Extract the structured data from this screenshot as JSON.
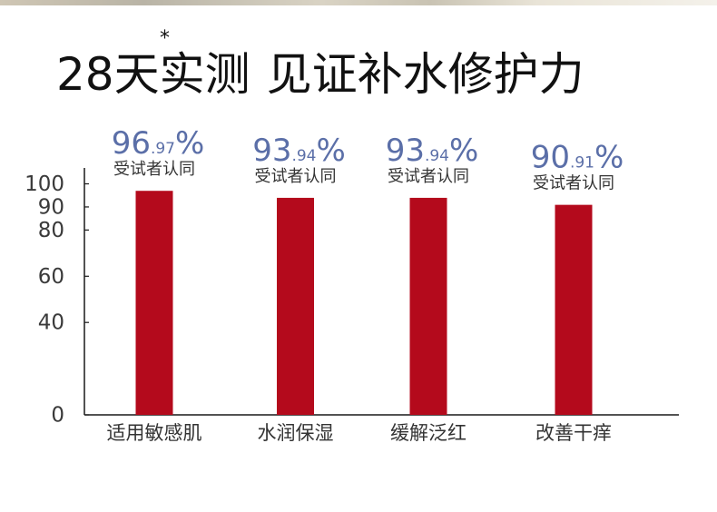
{
  "headline": {
    "part1": "28天实测",
    "part2": "见证补水修护力",
    "marker": "*"
  },
  "chart_data": {
    "type": "bar",
    "categories": [
      "适用敏感肌",
      "水润保湿",
      "缓解泛红",
      "改善干痒"
    ],
    "values": [
      96.97,
      93.94,
      93.94,
      90.91
    ],
    "labels": [
      {
        "main": "96",
        "decimal": ".97",
        "unit": "%",
        "note": "受试者认同"
      },
      {
        "main": "93",
        "decimal": ".94",
        "unit": "%",
        "note": "受试者认同"
      },
      {
        "main": "93",
        "decimal": ".94",
        "unit": "%",
        "note": "受试者认同"
      },
      {
        "main": "90",
        "decimal": ".91",
        "unit": "%",
        "note": "受试者认同"
      }
    ],
    "yticks": [
      {
        "value": 0,
        "label": "0"
      },
      {
        "value": 40,
        "label": "40"
      },
      {
        "value": 60,
        "label": "60"
      },
      {
        "value": 80,
        "label": "80"
      },
      {
        "value": 90,
        "label": "90"
      },
      {
        "value": 100,
        "label": "100"
      }
    ],
    "ylim": [
      0,
      105
    ],
    "grid": false,
    "colors": {
      "bar": "#b40a1c",
      "label": "#5b6fa8",
      "axis": "#1a1a1a",
      "text": "#333333"
    }
  }
}
